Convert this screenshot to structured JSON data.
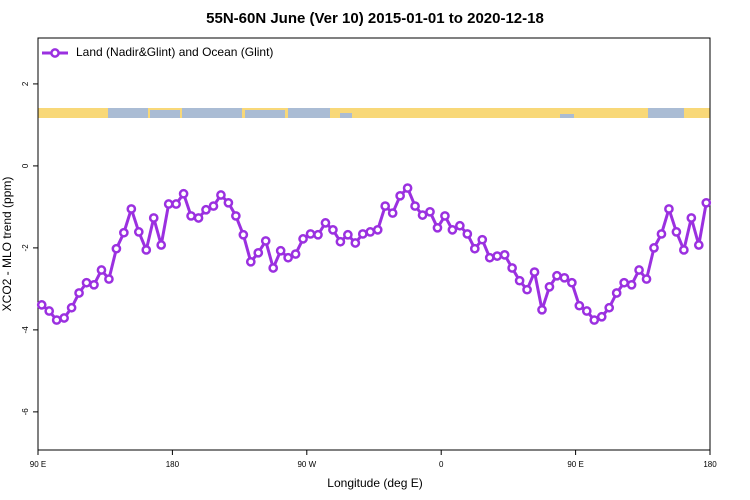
{
  "chart_data": {
    "type": "line",
    "title": "55N-60N June (Ver 10)   2015-01-01 to 2020-12-18",
    "xlabel": "Longitude (deg E)",
    "ylabel": "XCO2 - MLO trend (ppm)",
    "xlim": [
      90,
      540
    ],
    "ylim": [
      -6.93,
      3.12
    ],
    "xticks": [
      {
        "value": 90,
        "label": "90 E"
      },
      {
        "value": 180,
        "label": "180"
      },
      {
        "value": 270,
        "label": "90 W"
      },
      {
        "value": 360,
        "label": "0"
      },
      {
        "value": 450,
        "label": "90 E"
      },
      {
        "value": 540,
        "label": "180"
      }
    ],
    "yticks": [
      2,
      0,
      -2,
      -4,
      -6
    ],
    "legend": "top-left",
    "x": [
      92.5,
      97.5,
      102.5,
      107.5,
      112.5,
      117.5,
      122.5,
      127.5,
      132.5,
      137.5,
      142.5,
      147.5,
      152.5,
      157.5,
      162.5,
      167.5,
      172.5,
      177.5,
      182.5,
      187.5,
      192.5,
      197.5,
      202.5,
      207.5,
      212.5,
      217.5,
      222.5,
      227.5,
      232.5,
      237.5,
      242.5,
      247.5,
      252.5,
      257.5,
      262.5,
      267.5,
      272.5,
      277.5,
      282.5,
      287.5,
      292.5,
      297.5,
      302.5,
      307.5,
      312.5,
      317.5,
      322.5,
      327.5,
      332.5,
      337.5,
      342.5,
      347.5,
      352.5,
      357.5,
      362.5,
      367.5,
      372.5,
      377.5,
      382.5,
      387.5,
      392.5,
      397.5,
      402.5,
      407.5,
      412.5,
      417.5,
      422.5,
      427.5,
      432.5,
      437.5,
      442.5,
      447.5,
      452.5,
      457.5,
      462.5,
      467.5,
      472.5,
      477.5,
      482.5,
      487.5,
      492.5,
      497.5,
      502.5,
      507.5,
      512.5,
      517.5,
      522.5,
      527.5,
      532.5,
      537.5
    ],
    "series": [
      {
        "name": "Land (Nadir&Glint) and Ocean (Glint)",
        "color": "#9b30e0",
        "values": [
          -3.39,
          -3.54,
          -3.76,
          -3.71,
          -3.46,
          -3.1,
          -2.85,
          -2.9,
          -2.54,
          -2.76,
          -2.02,
          -1.63,
          -1.05,
          -1.61,
          -2.05,
          -1.27,
          -1.93,
          -0.93,
          -0.93,
          -0.68,
          -1.22,
          -1.27,
          -1.07,
          -0.98,
          -0.71,
          -0.9,
          -1.22,
          -1.68,
          -2.34,
          -2.12,
          -1.83,
          -2.49,
          -2.07,
          -2.24,
          -2.15,
          -1.78,
          -1.66,
          -1.68,
          -1.39,
          -1.56,
          -1.85,
          -1.68,
          -1.88,
          -1.66,
          -1.61,
          -1.56,
          -0.98,
          -1.15,
          -0.73,
          -0.54,
          -0.98,
          -1.2,
          -1.12,
          -1.51,
          -1.22,
          -1.56,
          -1.46,
          -1.66,
          -2.02,
          -1.8,
          -2.24,
          -2.2,
          -2.17,
          -2.49,
          -2.8,
          -3.02,
          -2.59,
          -3.51,
          -2.95,
          -2.68,
          -2.73,
          -2.85,
          -3.41,
          -3.54,
          -3.76,
          -3.68,
          -3.46,
          -3.1,
          -2.85,
          -2.9,
          -2.54,
          -2.76,
          -2.0,
          -1.66,
          -1.05,
          -1.61,
          -2.05,
          -1.27,
          -1.93,
          -0.9
        ]
      }
    ]
  }
}
